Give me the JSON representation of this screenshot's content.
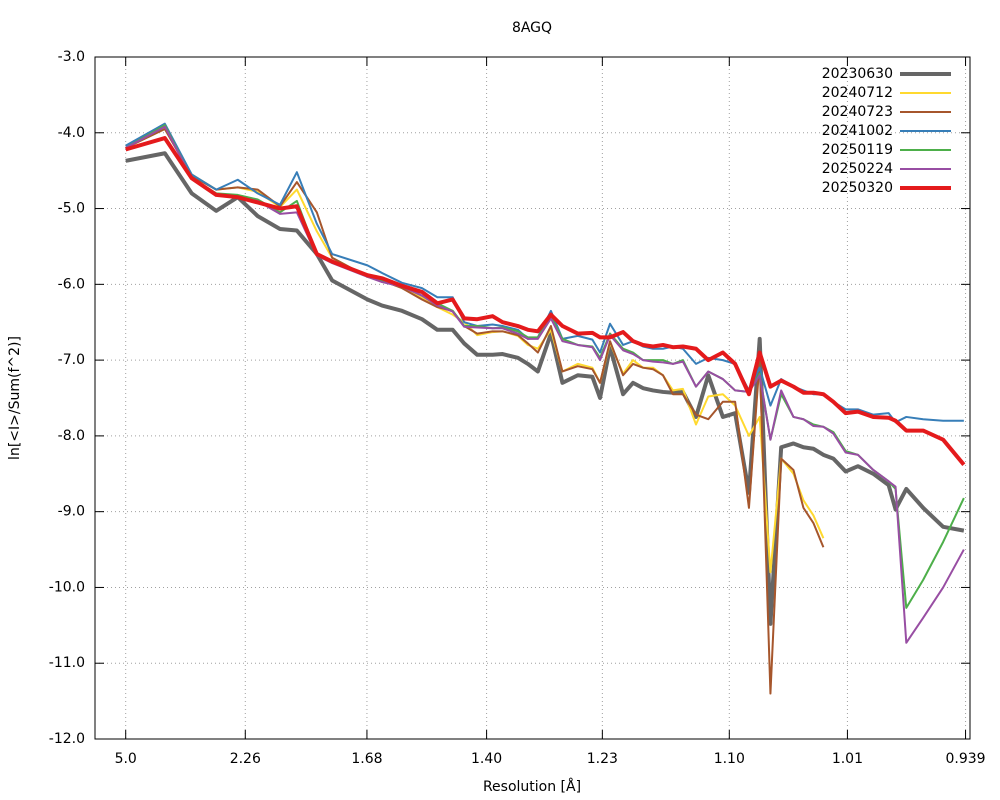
{
  "chart_data": {
    "type": "line",
    "title": "8AGQ",
    "x_label": "Resolution [Å]",
    "y_label": "ln[<I>/Sum(f^2)]",
    "xlim": [
      0,
      1.14
    ],
    "ylim": [
      -12,
      -3
    ],
    "xticks": [
      {
        "value": 0.04,
        "label": "5.0"
      },
      {
        "value": 0.1958,
        "label": "2.26"
      },
      {
        "value": 0.3543,
        "label": "1.68"
      },
      {
        "value": 0.5102,
        "label": "1.40"
      },
      {
        "value": 0.661,
        "label": "1.23"
      },
      {
        "value": 0.8264,
        "label": "1.10"
      },
      {
        "value": 0.9803,
        "label": "1.01"
      },
      {
        "value": 1.1342,
        "label": "0.939"
      }
    ],
    "yticks": [
      {
        "value": -3,
        "label": "-3.0"
      },
      {
        "value": -4,
        "label": "-4.0"
      },
      {
        "value": -5,
        "label": "-5.0"
      },
      {
        "value": -6,
        "label": "-6.0"
      },
      {
        "value": -7,
        "label": "-7.0"
      },
      {
        "value": -8,
        "label": "-8.0"
      },
      {
        "value": -9,
        "label": "-9.0"
      },
      {
        "value": -10,
        "label": "-10.0"
      },
      {
        "value": -11,
        "label": "-11.0"
      },
      {
        "value": -12,
        "label": "-12.0"
      }
    ],
    "grid": true,
    "legend": "upper right",
    "x": [
      0.04,
      0.091,
      0.126,
      0.158,
      0.186,
      0.212,
      0.241,
      0.263,
      0.289,
      0.309,
      0.355,
      0.374,
      0.4,
      0.426,
      0.446,
      0.466,
      0.481,
      0.498,
      0.518,
      0.531,
      0.551,
      0.564,
      0.577,
      0.594,
      0.609,
      0.629,
      0.648,
      0.658,
      0.671,
      0.688,
      0.701,
      0.714,
      0.727,
      0.74,
      0.753,
      0.766,
      0.783,
      0.799,
      0.818,
      0.834,
      0.852,
      0.866,
      0.88,
      0.894,
      0.91,
      0.923,
      0.936,
      0.949,
      0.962,
      0.978,
      0.994,
      1.014,
      1.034,
      1.043,
      1.057,
      1.079,
      1.105,
      1.132
    ],
    "series": [
      {
        "name": "20230630",
        "color": "#666666",
        "line_width": 4,
        "values": [
          -4.37,
          -4.27,
          -4.8,
          -5.03,
          -4.85,
          -5.1,
          -5.27,
          -5.29,
          -5.6,
          -5.95,
          -6.2,
          -6.28,
          -6.35,
          -6.46,
          -6.6,
          -6.6,
          -6.78,
          -6.93,
          -6.93,
          -6.92,
          -6.97,
          -7.05,
          -7.15,
          -6.65,
          -7.3,
          -7.2,
          -7.22,
          -7.5,
          -6.83,
          -7.45,
          -7.3,
          -7.37,
          -7.4,
          -7.42,
          -7.43,
          -7.42,
          -7.75,
          -7.2,
          -7.75,
          -7.7,
          -8.75,
          -6.72,
          -10.48,
          -8.15,
          -8.1,
          -8.15,
          -8.17,
          -8.25,
          -8.3,
          -8.47,
          -8.4,
          -8.5,
          -8.65,
          -8.97,
          -8.7,
          -8.95,
          -9.2,
          -9.25
        ]
      },
      {
        "name": "20240712",
        "color": "#ffd92f",
        "line_width": 2,
        "values": [
          -4.2,
          -3.95,
          -4.55,
          -4.75,
          -4.72,
          -4.78,
          -4.98,
          -4.75,
          -5.3,
          -5.65,
          -5.9,
          -5.95,
          -6.05,
          -6.18,
          -6.3,
          -6.4,
          -6.5,
          -6.67,
          -6.63,
          -6.62,
          -6.68,
          -6.8,
          -6.85,
          -6.6,
          -7.15,
          -7.05,
          -7.1,
          -7.3,
          -6.77,
          -7.18,
          -7.0,
          -7.1,
          -7.1,
          -7.2,
          -7.4,
          -7.38,
          -7.85,
          -7.48,
          -7.45,
          -7.6,
          -8.0,
          -7.75,
          -9.8,
          -8.3,
          -8.5,
          -8.85,
          -9.05,
          -9.35,
          null,
          null,
          null,
          null,
          null,
          null,
          null,
          null,
          null,
          null
        ]
      },
      {
        "name": "20240723",
        "color": "#a6562c",
        "line_width": 2,
        "values": [
          -4.2,
          -3.95,
          -4.57,
          -4.75,
          -4.72,
          -4.75,
          -4.97,
          -4.65,
          -5.05,
          -5.65,
          -5.9,
          -5.95,
          -6.05,
          -6.2,
          -6.3,
          -6.35,
          -6.55,
          -6.65,
          -6.62,
          -6.62,
          -6.67,
          -6.78,
          -6.9,
          -6.55,
          -7.15,
          -7.08,
          -7.12,
          -7.3,
          -6.75,
          -7.2,
          -7.05,
          -7.1,
          -7.12,
          -7.2,
          -7.45,
          -7.45,
          -7.72,
          -7.78,
          -7.55,
          -7.55,
          -8.95,
          -7.0,
          -11.4,
          -8.3,
          -8.45,
          -8.95,
          -9.15,
          -9.47,
          null,
          null,
          null,
          null,
          null,
          null,
          null,
          null,
          null,
          null
        ]
      },
      {
        "name": "20241002",
        "color": "#377eb8",
        "line_width": 2,
        "values": [
          -4.17,
          -3.88,
          -4.55,
          -4.75,
          -4.62,
          -4.8,
          -4.95,
          -4.52,
          -5.2,
          -5.6,
          -5.75,
          -5.85,
          -5.98,
          -6.05,
          -6.17,
          -6.17,
          -6.5,
          -6.55,
          -6.53,
          -6.55,
          -6.6,
          -6.72,
          -6.7,
          -6.35,
          -6.72,
          -6.68,
          -6.73,
          -6.9,
          -6.52,
          -6.8,
          -6.75,
          -6.82,
          -6.85,
          -6.85,
          -6.82,
          -6.85,
          -7.05,
          -6.97,
          -7.0,
          -7.05,
          -7.4,
          -7.1,
          -7.6,
          -7.25,
          -7.35,
          -7.4,
          -7.45,
          -7.45,
          -7.55,
          -7.65,
          -7.65,
          -7.72,
          -7.7,
          -7.82,
          -7.75,
          -7.78,
          -7.8,
          -7.8
        ]
      },
      {
        "name": "20250119",
        "color": "#4daf4a",
        "line_width": 2,
        "values": [
          -4.2,
          -3.9,
          -4.6,
          -4.8,
          -4.82,
          -4.88,
          -5.05,
          -4.9,
          -5.6,
          -5.7,
          -5.88,
          -5.95,
          -6.02,
          -6.15,
          -6.25,
          -6.35,
          -6.55,
          -6.55,
          -6.58,
          -6.57,
          -6.62,
          -6.7,
          -6.7,
          -6.42,
          -6.72,
          -6.8,
          -6.82,
          -6.97,
          -6.65,
          -6.85,
          -6.9,
          -7.0,
          -7.0,
          -7.0,
          -7.05,
          -7.0,
          -7.35,
          -7.15,
          -7.25,
          -7.4,
          -7.42,
          -7.18,
          -8.05,
          -7.45,
          -7.75,
          -7.78,
          -7.85,
          -7.88,
          -7.95,
          -8.2,
          -8.25,
          -8.45,
          -8.6,
          -8.7,
          -10.27,
          -9.9,
          -9.4,
          -8.82
        ]
      },
      {
        "name": "20250224",
        "color": "#984ea3",
        "line_width": 2,
        "values": [
          -4.2,
          -3.92,
          -4.6,
          -4.82,
          -4.85,
          -4.9,
          -5.07,
          -5.05,
          -5.62,
          -5.72,
          -5.9,
          -5.97,
          -6.03,
          -6.15,
          -6.28,
          -6.36,
          -6.56,
          -6.57,
          -6.58,
          -6.58,
          -6.65,
          -6.72,
          -6.72,
          -6.45,
          -6.75,
          -6.8,
          -6.83,
          -7.0,
          -6.67,
          -6.87,
          -6.92,
          -7.0,
          -7.02,
          -7.03,
          -7.05,
          -7.02,
          -7.35,
          -7.15,
          -7.25,
          -7.4,
          -7.42,
          -7.2,
          -8.05,
          -7.4,
          -7.75,
          -7.78,
          -7.87,
          -7.88,
          -7.97,
          -8.22,
          -8.25,
          -8.45,
          -8.6,
          -8.67,
          -10.73,
          -10.4,
          -10.0,
          -9.5
        ]
      },
      {
        "name": "20250320",
        "color": "#e41a1c",
        "line_width": 4,
        "values": [
          -4.22,
          -4.07,
          -4.6,
          -4.82,
          -4.85,
          -4.92,
          -5.0,
          -4.97,
          -5.6,
          -5.7,
          -5.88,
          -5.92,
          -6.02,
          -6.1,
          -6.25,
          -6.2,
          -6.45,
          -6.46,
          -6.42,
          -6.5,
          -6.55,
          -6.6,
          -6.62,
          -6.4,
          -6.55,
          -6.65,
          -6.64,
          -6.7,
          -6.7,
          -6.63,
          -6.75,
          -6.8,
          -6.82,
          -6.8,
          -6.83,
          -6.82,
          -6.85,
          -7.0,
          -6.9,
          -7.05,
          -7.45,
          -6.9,
          -7.35,
          -7.27,
          -7.35,
          -7.43,
          -7.43,
          -7.45,
          -7.55,
          -7.7,
          -7.68,
          -7.75,
          -7.76,
          -7.8,
          -7.93,
          -7.93,
          -8.05,
          -8.38
        ]
      }
    ]
  }
}
